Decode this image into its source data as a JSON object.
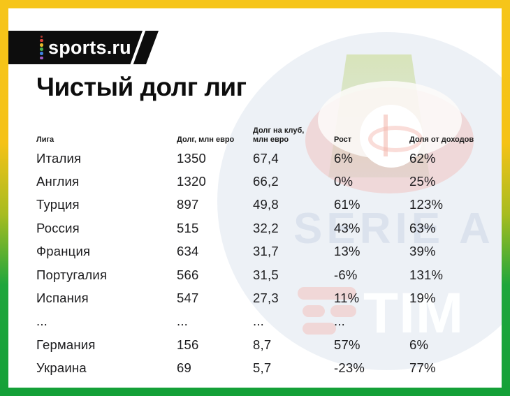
{
  "logo": {
    "text": "sports.ru",
    "dot_colors": [
      "#b03a30",
      "#e0453a",
      "#e7bb2b",
      "#4caf50",
      "#3f82e0",
      "#a15ec4"
    ]
  },
  "title": "Чистый долг лиг",
  "chart_data": {
    "type": "table",
    "title": "Чистый долг лиг",
    "columns": [
      "Лига",
      "Долг, млн евро",
      "Долг на клуб, млн евро",
      "Рост",
      "Доля от доходов"
    ],
    "rows": [
      [
        "Италия",
        "1350",
        "67,4",
        "6%",
        "62%"
      ],
      [
        "Англия",
        "1320",
        "66,2",
        "0%",
        "25%"
      ],
      [
        "Турция",
        "897",
        "49,8",
        "61%",
        "123%"
      ],
      [
        "Россия",
        "515",
        "32,2",
        "43%",
        "63%"
      ],
      [
        "Франция",
        "634",
        "31,7",
        "13%",
        "39%"
      ],
      [
        "Португалия",
        "566",
        "31,5",
        "-6%",
        "131%"
      ],
      [
        "Испания",
        "547",
        "27,3",
        "11%",
        "19%"
      ],
      [
        "...",
        "...",
        "...",
        "...",
        ""
      ],
      [
        "Германия",
        "156",
        "8,7",
        "57%",
        "6%"
      ],
      [
        "Украина",
        "69",
        "5,7",
        "-23%",
        "77%"
      ]
    ],
    "units": "млн евро"
  },
  "watermark": {
    "league_text": "SERIE A",
    "sponsor_text": "TIM"
  },
  "colors": {
    "frame_top": "#f5c216",
    "frame_bottom": "#17a63a",
    "card": "#ffffff",
    "text": "#111111"
  }
}
